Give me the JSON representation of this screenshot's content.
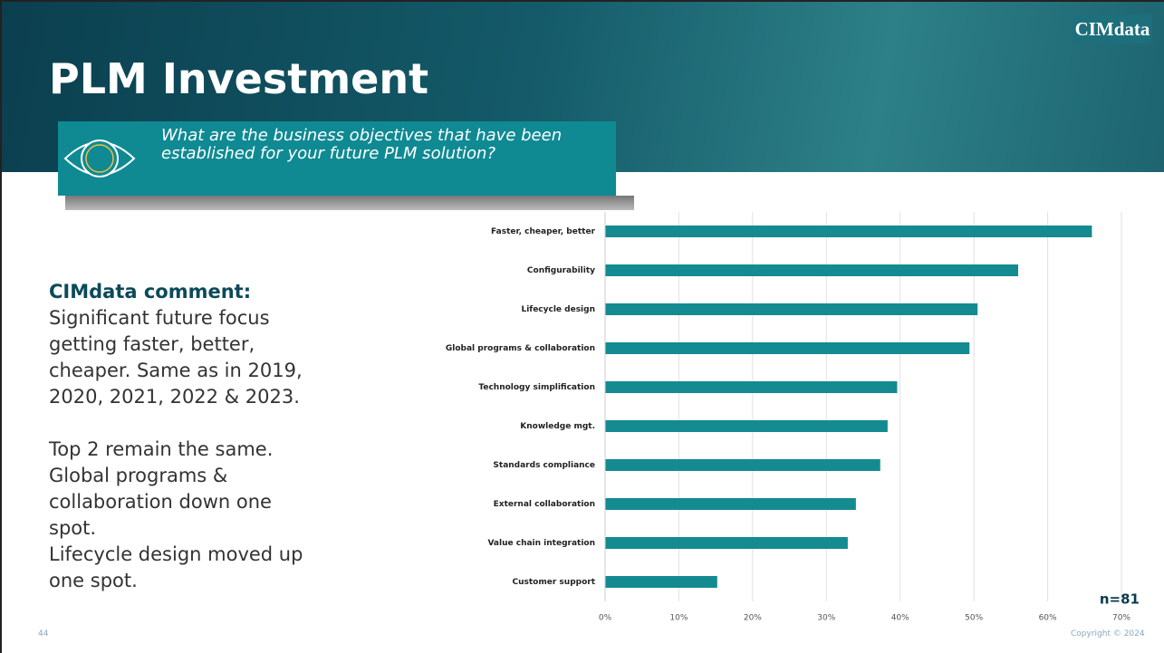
{
  "header": {
    "title": "PLM Investment",
    "logo": "CIMdata",
    "question": "What are the business objectives that have been established for your future PLM solution?"
  },
  "comment": {
    "label": "CIMdata comment:",
    "text": "Significant future focus getting faster, better, cheaper. Same as in 2019, 2020, 2021, 2022 & 2023."
  },
  "notes": [
    "Top 2 remain the same.",
    "Global programs & collaboration down one spot.",
    "Lifecycle design moved up one spot."
  ],
  "footer": {
    "page": "44",
    "copyright": "Copyright © 2024"
  },
  "chart_data": {
    "type": "bar",
    "orientation": "horizontal",
    "annotation": "n=81",
    "categories": [
      "Faster, cheaper, better",
      "Configurability",
      "Lifecycle design",
      "Global programs & collaboration",
      "Technology simplification",
      "Knowledge mgt.",
      "Standards compliance",
      "External collaboration",
      "Value chain integration",
      "Customer support"
    ],
    "values": [
      66.0,
      56.0,
      50.5,
      49.4,
      39.6,
      38.3,
      37.3,
      34.0,
      32.9,
      15.2
    ],
    "color": "#138b91",
    "grid": true,
    "xlim": [
      0,
      70
    ],
    "xticks": [
      {
        "value": 0,
        "label": "0%"
      },
      {
        "value": 10,
        "label": "10%"
      },
      {
        "value": 20,
        "label": "20%"
      },
      {
        "value": 30,
        "label": "30%"
      },
      {
        "value": 40,
        "label": "40%"
      },
      {
        "value": 50,
        "label": "50%"
      },
      {
        "value": 60,
        "label": "60%"
      },
      {
        "value": 70,
        "label": "70%"
      }
    ]
  }
}
